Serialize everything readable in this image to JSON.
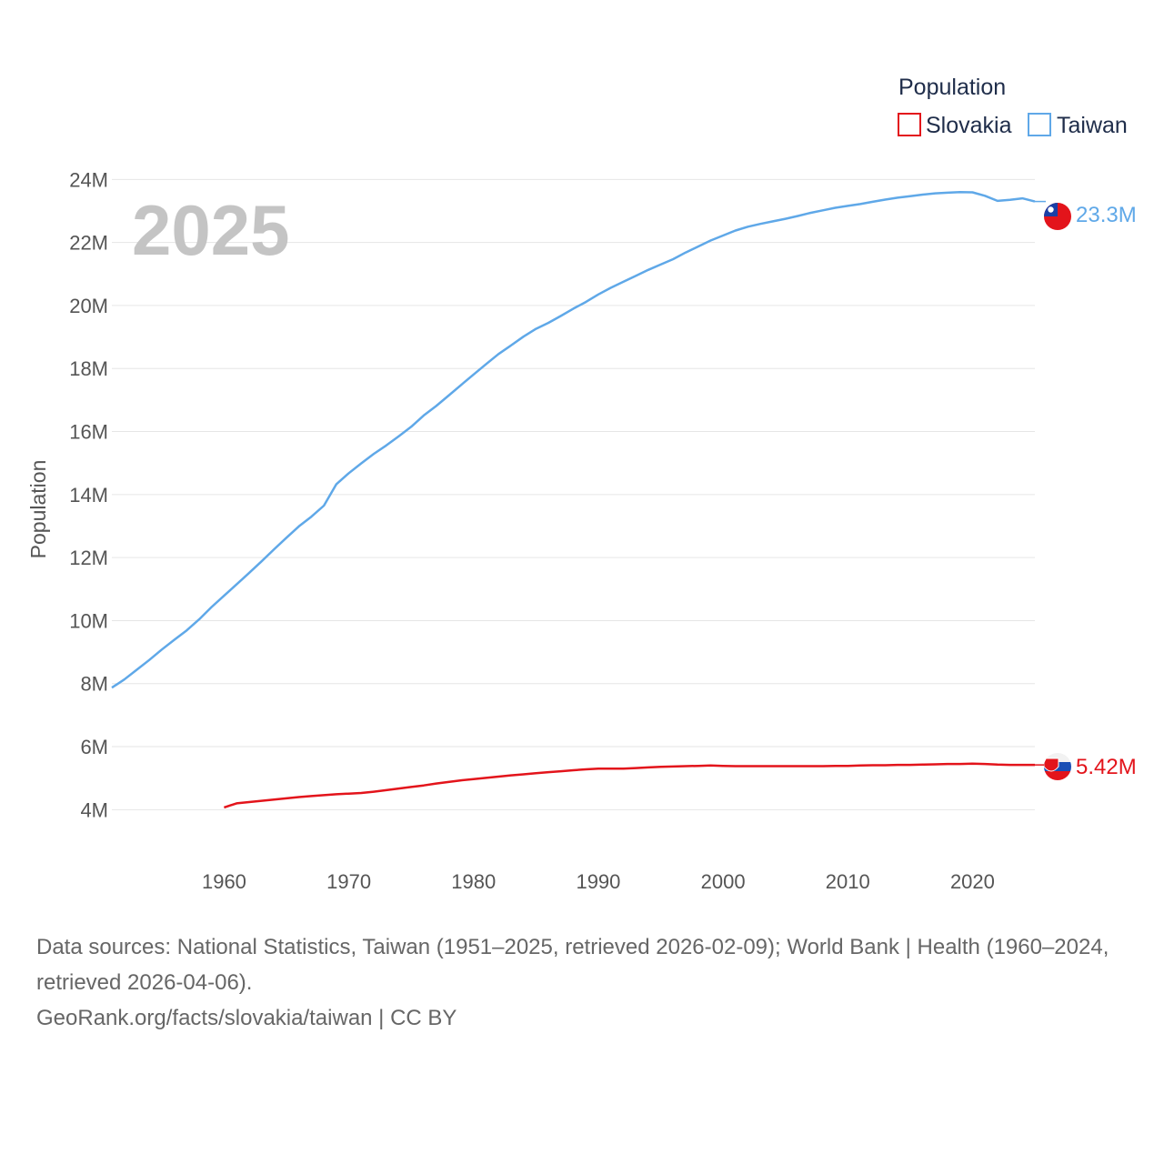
{
  "chart_data": {
    "type": "line",
    "year_label": "2025",
    "ylabel": "Population",
    "xlabel": "",
    "xlim": [
      1951,
      2025
    ],
    "ylim": [
      3.0,
      24.5
    ],
    "x_ticks": [
      1960,
      1970,
      1980,
      1990,
      2000,
      2010,
      2020
    ],
    "x_tick_labels": [
      "1960",
      "1970",
      "1980",
      "1990",
      "2000",
      "2010",
      "2020"
    ],
    "y_ticks": [
      4,
      6,
      8,
      10,
      12,
      14,
      16,
      18,
      20,
      22,
      24
    ],
    "y_tick_labels": [
      "4M",
      "6M",
      "8M",
      "10M",
      "12M",
      "14M",
      "16M",
      "18M",
      "20M",
      "22M",
      "24M"
    ],
    "y_unit": "millions",
    "grid": true,
    "legend": {
      "title": "Population",
      "position": "top-right"
    },
    "series": [
      {
        "name": "Slovakia",
        "color": "#e3141b",
        "end_label": "5.42M",
        "end_year": 2025,
        "end_value": 5.42,
        "points": [
          [
            1960,
            4.07
          ],
          [
            1961,
            4.2
          ],
          [
            1962,
            4.24
          ],
          [
            1963,
            4.28
          ],
          [
            1964,
            4.32
          ],
          [
            1965,
            4.36
          ],
          [
            1966,
            4.4
          ],
          [
            1967,
            4.43
          ],
          [
            1968,
            4.46
          ],
          [
            1969,
            4.49
          ],
          [
            1970,
            4.51
          ],
          [
            1971,
            4.53
          ],
          [
            1972,
            4.57
          ],
          [
            1973,
            4.62
          ],
          [
            1974,
            4.67
          ],
          [
            1975,
            4.72
          ],
          [
            1976,
            4.77
          ],
          [
            1977,
            4.83
          ],
          [
            1978,
            4.88
          ],
          [
            1979,
            4.93
          ],
          [
            1980,
            4.97
          ],
          [
            1981,
            5.01
          ],
          [
            1982,
            5.05
          ],
          [
            1983,
            5.09
          ],
          [
            1984,
            5.12
          ],
          [
            1985,
            5.16
          ],
          [
            1986,
            5.19
          ],
          [
            1987,
            5.22
          ],
          [
            1988,
            5.25
          ],
          [
            1989,
            5.28
          ],
          [
            1990,
            5.3
          ],
          [
            1991,
            5.3
          ],
          [
            1992,
            5.3
          ],
          [
            1993,
            5.32
          ],
          [
            1994,
            5.34
          ],
          [
            1995,
            5.36
          ],
          [
            1996,
            5.37
          ],
          [
            1997,
            5.38
          ],
          [
            1998,
            5.39
          ],
          [
            1999,
            5.4
          ],
          [
            2000,
            5.39
          ],
          [
            2001,
            5.38
          ],
          [
            2002,
            5.38
          ],
          [
            2003,
            5.38
          ],
          [
            2004,
            5.38
          ],
          [
            2005,
            5.38
          ],
          [
            2006,
            5.38
          ],
          [
            2007,
            5.38
          ],
          [
            2008,
            5.38
          ],
          [
            2009,
            5.39
          ],
          [
            2010,
            5.39
          ],
          [
            2011,
            5.4
          ],
          [
            2012,
            5.41
          ],
          [
            2013,
            5.41
          ],
          [
            2014,
            5.42
          ],
          [
            2015,
            5.42
          ],
          [
            2016,
            5.43
          ],
          [
            2017,
            5.44
          ],
          [
            2018,
            5.45
          ],
          [
            2019,
            5.45
          ],
          [
            2020,
            5.46
          ],
          [
            2021,
            5.45
          ],
          [
            2022,
            5.43
          ],
          [
            2023,
            5.42
          ],
          [
            2024,
            5.42
          ],
          [
            2025,
            5.42
          ]
        ]
      },
      {
        "name": "Taiwan",
        "color": "#5fa8e8",
        "end_label": "23.3M",
        "end_year": 2025,
        "end_value": 23.3,
        "points": [
          [
            1951,
            7.87
          ],
          [
            1952,
            8.13
          ],
          [
            1953,
            8.44
          ],
          [
            1954,
            8.75
          ],
          [
            1955,
            9.08
          ],
          [
            1956,
            9.39
          ],
          [
            1957,
            9.69
          ],
          [
            1958,
            10.04
          ],
          [
            1959,
            10.43
          ],
          [
            1960,
            10.79
          ],
          [
            1961,
            11.15
          ],
          [
            1962,
            11.51
          ],
          [
            1963,
            11.88
          ],
          [
            1964,
            12.26
          ],
          [
            1965,
            12.63
          ],
          [
            1966,
            12.99
          ],
          [
            1967,
            13.3
          ],
          [
            1968,
            13.65
          ],
          [
            1969,
            14.33
          ],
          [
            1970,
            14.68
          ],
          [
            1971,
            14.99
          ],
          [
            1972,
            15.29
          ],
          [
            1973,
            15.56
          ],
          [
            1974,
            15.85
          ],
          [
            1975,
            16.15
          ],
          [
            1976,
            16.51
          ],
          [
            1977,
            16.81
          ],
          [
            1978,
            17.14
          ],
          [
            1979,
            17.48
          ],
          [
            1980,
            17.81
          ],
          [
            1981,
            18.14
          ],
          [
            1982,
            18.46
          ],
          [
            1983,
            18.73
          ],
          [
            1984,
            19.01
          ],
          [
            1985,
            19.26
          ],
          [
            1986,
            19.45
          ],
          [
            1987,
            19.67
          ],
          [
            1988,
            19.9
          ],
          [
            1989,
            20.11
          ],
          [
            1990,
            20.35
          ],
          [
            1991,
            20.56
          ],
          [
            1992,
            20.75
          ],
          [
            1993,
            20.94
          ],
          [
            1994,
            21.13
          ],
          [
            1995,
            21.3
          ],
          [
            1996,
            21.47
          ],
          [
            1997,
            21.68
          ],
          [
            1998,
            21.87
          ],
          [
            1999,
            22.06
          ],
          [
            2000,
            22.22
          ],
          [
            2001,
            22.38
          ],
          [
            2002,
            22.5
          ],
          [
            2003,
            22.59
          ],
          [
            2004,
            22.67
          ],
          [
            2005,
            22.75
          ],
          [
            2006,
            22.84
          ],
          [
            2007,
            22.94
          ],
          [
            2008,
            23.02
          ],
          [
            2009,
            23.1
          ],
          [
            2010,
            23.16
          ],
          [
            2011,
            23.22
          ],
          [
            2012,
            23.29
          ],
          [
            2013,
            23.36
          ],
          [
            2014,
            23.42
          ],
          [
            2015,
            23.47
          ],
          [
            2016,
            23.52
          ],
          [
            2017,
            23.56
          ],
          [
            2018,
            23.58
          ],
          [
            2019,
            23.6
          ],
          [
            2020,
            23.59
          ],
          [
            2021,
            23.48
          ],
          [
            2022,
            23.32
          ],
          [
            2023,
            23.35
          ],
          [
            2024,
            23.4
          ],
          [
            2025,
            23.3
          ]
        ]
      }
    ]
  },
  "footer": {
    "sources": "Data sources: National Statistics, Taiwan (1951–2025, retrieved 2026-02-09); World Bank | Health (1960–2024, retrieved 2026-04-06).",
    "credit": "GeoRank.org/facts/slovakia/taiwan | CC BY"
  }
}
